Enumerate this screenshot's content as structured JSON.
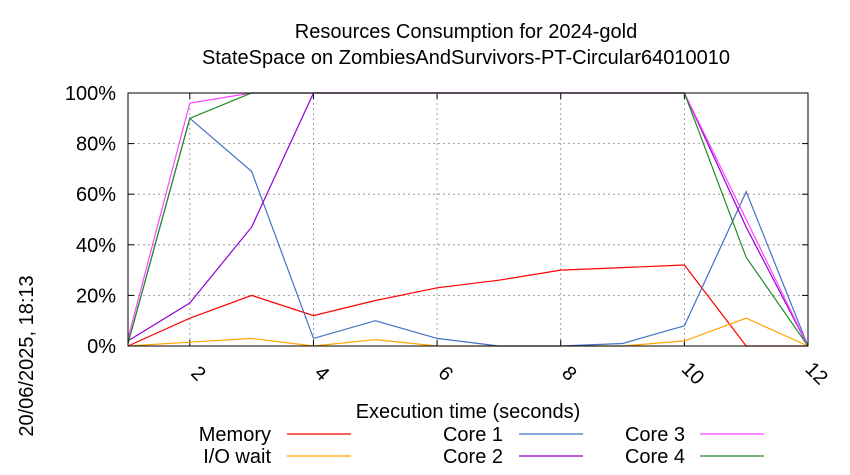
{
  "chart_data": {
    "type": "line",
    "title": "Resources Consumption for 2024-gold",
    "subtitle": "StateSpace on ZombiesAndSurvivors-PT-Circular64010010",
    "xlabel": "Execution time (seconds)",
    "ylabel": "",
    "xlim": [
      1,
      12
    ],
    "ylim": [
      0,
      100
    ],
    "x_ticks": [
      2,
      4,
      6,
      8,
      10,
      12
    ],
    "y_ticks": [
      0,
      20,
      40,
      60,
      80,
      100
    ],
    "y_tick_labels": [
      "0%",
      "20%",
      "40%",
      "60%",
      "80%",
      "100%"
    ],
    "grid": true,
    "legend_position": "bottom",
    "timestamp": "20/06/2025, 18:13",
    "series": [
      {
        "name": "Memory",
        "color": "#ff0000",
        "x": [
          1,
          2,
          3,
          4,
          5,
          6,
          7,
          8,
          9,
          10,
          11,
          12
        ],
        "y": [
          0,
          11,
          20,
          12,
          18,
          23,
          26,
          30,
          31,
          32,
          0,
          0
        ]
      },
      {
        "name": "I/O wait",
        "color": "#ffa500",
        "x": [
          1,
          2,
          3,
          4,
          5,
          6,
          7,
          8,
          9,
          10,
          11,
          12
        ],
        "y": [
          0,
          1.5,
          3,
          0,
          2.5,
          0,
          0,
          0,
          0,
          2,
          11,
          0
        ]
      },
      {
        "name": "Core 1",
        "color": "#4472c4",
        "x": [
          1,
          2,
          3,
          4,
          5,
          6,
          7,
          8,
          9,
          10,
          11,
          12
        ],
        "y": [
          1,
          90,
          69,
          3,
          10,
          3,
          0,
          0,
          1,
          8,
          61,
          0
        ]
      },
      {
        "name": "Core 2",
        "color": "#9400d3",
        "x": [
          1,
          2,
          3,
          4,
          5,
          6,
          7,
          8,
          9,
          10,
          11,
          12
        ],
        "y": [
          2,
          17,
          47,
          100,
          100,
          100,
          100,
          100,
          100,
          100,
          47,
          0
        ]
      },
      {
        "name": "Core 3",
        "color": "#ff44ff",
        "x": [
          1,
          2,
          3,
          4,
          5,
          6,
          7,
          8,
          9,
          10,
          11,
          12
        ],
        "y": [
          3,
          96,
          100,
          100,
          100,
          100,
          100,
          100,
          100,
          100,
          50,
          0
        ]
      },
      {
        "name": "Core 4",
        "color": "#228b22",
        "x": [
          1,
          2,
          3,
          4,
          5,
          6,
          7,
          8,
          9,
          10,
          11,
          12
        ],
        "y": [
          1,
          90,
          100,
          100,
          100,
          100,
          100,
          100,
          100,
          100,
          35,
          0
        ]
      }
    ]
  }
}
